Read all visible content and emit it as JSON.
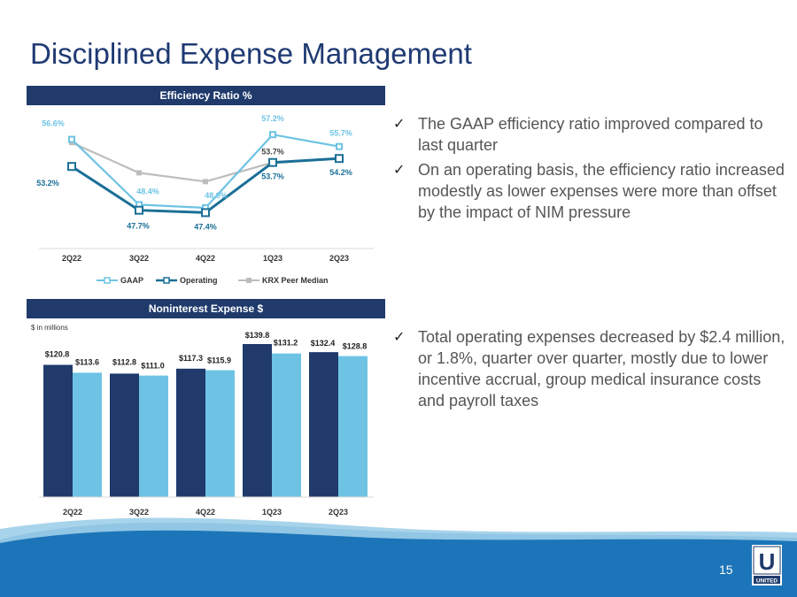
{
  "slide": {
    "title": "Disciplined Expense Management",
    "page_number": "15",
    "logo_text": "UNITED",
    "logo_letter": "U"
  },
  "bullets_top": [
    {
      "check": "✓",
      "text": "The GAAP efficiency ratio improved compared to last quarter"
    },
    {
      "check": "✓",
      "text": "On an operating basis, the efficiency ratio increased modestly as lower expenses were more than offset by the impact of NIM pressure"
    }
  ],
  "bullets_bottom": [
    {
      "check": "✓",
      "text": "Total operating expenses decreased by $2.4 million, or 1.8%, quarter over quarter, mostly due to lower incentive accrual, group medical insurance costs and payroll taxes"
    }
  ],
  "colors": {
    "navy": "#1f3a6b",
    "gaap_line": "#6ec3e4",
    "operating_line": "#1a6f96",
    "peer_line": "#bdbdbd",
    "bar_gaap": "#1f3a6b",
    "bar_operating": "#6ec3e4"
  },
  "chart_data": [
    {
      "type": "line",
      "title": "Efficiency Ratio %",
      "categories": [
        "2Q22",
        "3Q22",
        "4Q22",
        "1Q23",
        "2Q23"
      ],
      "series": [
        {
          "name": "GAAP",
          "values": [
            56.6,
            48.4,
            48.0,
            57.2,
            55.7
          ],
          "labels": [
            "56.6%",
            "48.4%",
            "48.0%",
            "57.2%",
            "55.7%"
          ]
        },
        {
          "name": "Operating",
          "values": [
            53.2,
            47.7,
            47.4,
            53.7,
            54.2
          ],
          "labels": [
            "53.2%",
            "47.7%",
            "47.4%",
            "53.7%",
            "54.2%"
          ]
        },
        {
          "name": "KRX Peer Median",
          "values": [
            56.2,
            52.4,
            51.3,
            53.7,
            null
          ],
          "labels": [
            "",
            "",
            "",
            "53.7%",
            ""
          ]
        }
      ],
      "ylim": [
        44,
        60
      ],
      "legend": "bottom"
    },
    {
      "type": "bar",
      "title": "Noninterest Expense $",
      "note": "$ in millions",
      "categories": [
        "2Q22",
        "3Q22",
        "4Q22",
        "1Q23",
        "2Q23"
      ],
      "series": [
        {
          "name": "GAAP",
          "values": [
            120.8,
            112.8,
            117.3,
            139.8,
            132.4
          ],
          "labels": [
            "$120.8",
            "$112.8",
            "$117.3",
            "$139.8",
            "$132.4"
          ]
        },
        {
          "name": "Operating",
          "values": [
            113.6,
            111.0,
            115.9,
            131.2,
            128.8
          ],
          "labels": [
            "$113.6",
            "$111.0",
            "$115.9",
            "$131.2",
            "$128.8"
          ]
        }
      ],
      "ylim": [
        0,
        140
      ],
      "legend": "bottom"
    }
  ]
}
